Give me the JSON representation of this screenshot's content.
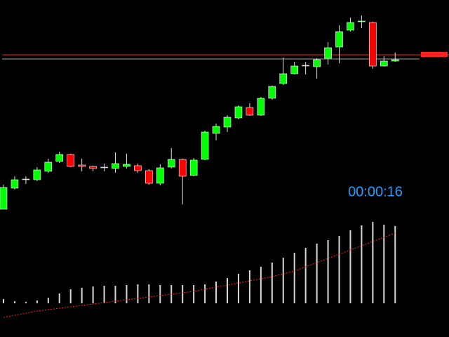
{
  "chart_data": {
    "type": "candlestick",
    "open": [
      182,
      212,
      225,
      224,
      236,
      250,
      260,
      245,
      243,
      242,
      240,
      243,
      244,
      237,
      219,
      242,
      253,
      230,
      253,
      290,
      299,
      312,
      327,
      316,
      340,
      361,
      375,
      386,
      385,
      397,
      413,
      437,
      449,
      448,
      386,
      393
    ],
    "high": [
      217,
      229,
      229,
      242,
      254,
      264,
      261,
      254,
      244,
      247,
      263,
      261,
      247,
      239,
      246,
      269,
      254,
      255,
      294,
      304,
      316,
      330,
      333,
      342,
      358,
      398,
      392,
      392,
      397,
      420,
      444,
      455,
      458,
      449,
      400,
      405
    ],
    "low": [
      182,
      210,
      218,
      222,
      234,
      248,
      242,
      236,
      236,
      236,
      234,
      240,
      234,
      217,
      216,
      240,
      189,
      229,
      252,
      280,
      292,
      310,
      315,
      315,
      338,
      359,
      374,
      374,
      368,
      388,
      390,
      435,
      440,
      382,
      385,
      392
    ],
    "close": [
      213,
      224,
      225,
      238,
      249,
      260,
      243,
      243,
      240,
      242,
      247,
      246,
      237,
      219,
      241,
      253,
      229,
      252,
      292,
      300,
      313,
      328,
      316,
      340,
      357,
      375,
      386,
      387,
      395,
      412,
      435,
      448,
      450,
      386,
      393,
      395
    ],
    "ylim": [
      0,
      480
    ],
    "up_color": "#00ff00",
    "down_color": "#ff0000",
    "wick_color": "#e0e0e0",
    "volume": {
      "values": [
        6,
        3,
        2,
        4,
        8,
        14,
        20,
        22,
        24,
        25,
        25,
        26,
        27,
        27,
        26,
        26,
        26,
        26,
        27,
        31,
        36,
        42,
        47,
        52,
        58,
        65,
        72,
        79,
        85,
        90,
        96,
        104,
        111,
        116,
        112,
        110
      ],
      "ma": [
        -20,
        -17,
        -14,
        -11,
        -9,
        -7,
        -5,
        -3,
        -1,
        1,
        3,
        5,
        7,
        9,
        11,
        13,
        15,
        17,
        20,
        23,
        26,
        29,
        32,
        35,
        38,
        42,
        46,
        52,
        58,
        64,
        70,
        76,
        82,
        88,
        94,
        100
      ],
      "ylim": [
        -48,
        432
      ],
      "color": "#d8d8d8",
      "ma_color": "#ff2020"
    },
    "price_lines": [
      {
        "value": 402,
        "color": "#ff2020"
      },
      {
        "value": 396,
        "color": "#a0a0a0"
      }
    ],
    "timer": "00:00:16",
    "timer_color": "#1e9fff"
  }
}
